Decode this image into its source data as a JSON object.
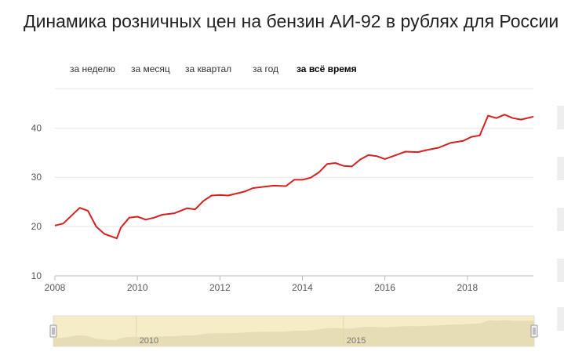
{
  "header": {
    "title": "Динамика розничных цен на бензин АИ-92 в рублях для России"
  },
  "tabs": [
    {
      "label": "за неделю",
      "active": false
    },
    {
      "label": "за месяц",
      "active": false
    },
    {
      "label": "за квартал",
      "active": false
    },
    {
      "label": "за год",
      "active": false
    },
    {
      "label": "за всё время",
      "active": true
    }
  ],
  "navigator": {
    "labels": [
      "2010",
      "2015"
    ]
  },
  "colors": {
    "line": "#d62020",
    "grid": "#e6e6e6",
    "navigator_fill": "#f5edc8",
    "navigator_mask": "#e6dcb5"
  },
  "chart_data": {
    "type": "line",
    "title": "Динамика розничных цен на бензин АИ-92 в рублях для России",
    "xlabel": "",
    "ylabel": "",
    "xlim": [
      2008,
      2019.6
    ],
    "ylim": [
      10,
      48
    ],
    "x_ticks": [
      2008,
      2010,
      2012,
      2014,
      2016,
      2018
    ],
    "y_ticks": [
      10,
      20,
      30,
      40
    ],
    "grid": true,
    "series": [
      {
        "name": "",
        "x": [
          2008.0,
          2008.2,
          2008.4,
          2008.6,
          2008.8,
          2009.0,
          2009.2,
          2009.5,
          2009.6,
          2009.8,
          2010.0,
          2010.2,
          2010.4,
          2010.6,
          2010.9,
          2011.2,
          2011.4,
          2011.6,
          2011.8,
          2012.0,
          2012.2,
          2012.4,
          2012.6,
          2012.8,
          2013.0,
          2013.3,
          2013.6,
          2013.8,
          2014.0,
          2014.2,
          2014.4,
          2014.6,
          2014.8,
          2015.0,
          2015.2,
          2015.4,
          2015.6,
          2015.8,
          2016.0,
          2016.2,
          2016.5,
          2016.8,
          2017.0,
          2017.3,
          2017.6,
          2017.9,
          2018.1,
          2018.3,
          2018.5,
          2018.7,
          2018.9,
          2019.1,
          2019.3,
          2019.6
        ],
        "y": [
          20.2,
          20.6,
          22.2,
          23.8,
          23.2,
          20.0,
          18.5,
          17.6,
          19.8,
          21.8,
          22.0,
          21.4,
          21.8,
          22.4,
          22.7,
          23.7,
          23.5,
          25.2,
          26.3,
          26.4,
          26.3,
          26.7,
          27.1,
          27.8,
          28.0,
          28.3,
          28.2,
          29.5,
          29.5,
          29.9,
          31.0,
          32.7,
          32.9,
          32.3,
          32.2,
          33.6,
          34.5,
          34.3,
          33.7,
          34.3,
          35.2,
          35.1,
          35.5,
          36.0,
          37.0,
          37.4,
          38.2,
          38.5,
          42.5,
          42.0,
          42.7,
          42.0,
          41.7,
          42.3
        ]
      }
    ]
  }
}
